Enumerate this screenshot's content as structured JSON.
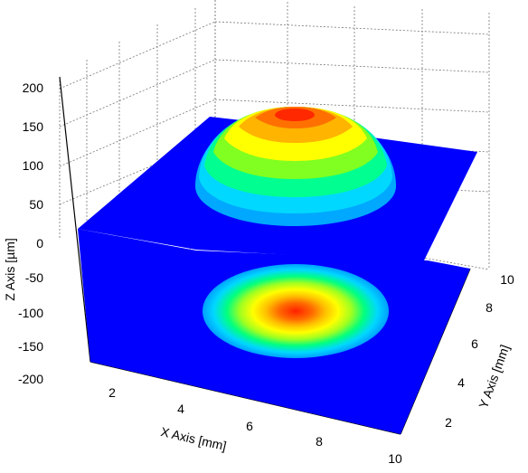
{
  "chart_data": {
    "type": "surface3d",
    "title": "",
    "xlabel": "X Axis [mm]",
    "ylabel": "Y Axis [mm]",
    "zlabel": "Z Axis [µm]",
    "xlim": [
      1,
      10
    ],
    "ylim": [
      0,
      10
    ],
    "zlim": [
      -200,
      200
    ],
    "x_ticks": [
      "2",
      "4",
      "6",
      "8",
      "10"
    ],
    "y_ticks": [
      "2",
      "4",
      "6",
      "8",
      "10"
    ],
    "z_ticks": [
      "200",
      "150",
      "100",
      "50",
      "0",
      "-50",
      "-100",
      "-150",
      "-200"
    ],
    "grid": true,
    "surface": {
      "shape": "spherical-cap",
      "center_x_mm": 6,
      "center_y_mm": 6,
      "radius_mm": 3,
      "peak_height_um": 150,
      "base_level_um": 0
    },
    "projection": {
      "shown_at_z_um": -200,
      "type": "contour-map"
    },
    "colormap": [
      "#0000ff",
      "#00c8ff",
      "#00ff80",
      "#80ff00",
      "#ffff00",
      "#ffa000",
      "#ff3000"
    ]
  }
}
